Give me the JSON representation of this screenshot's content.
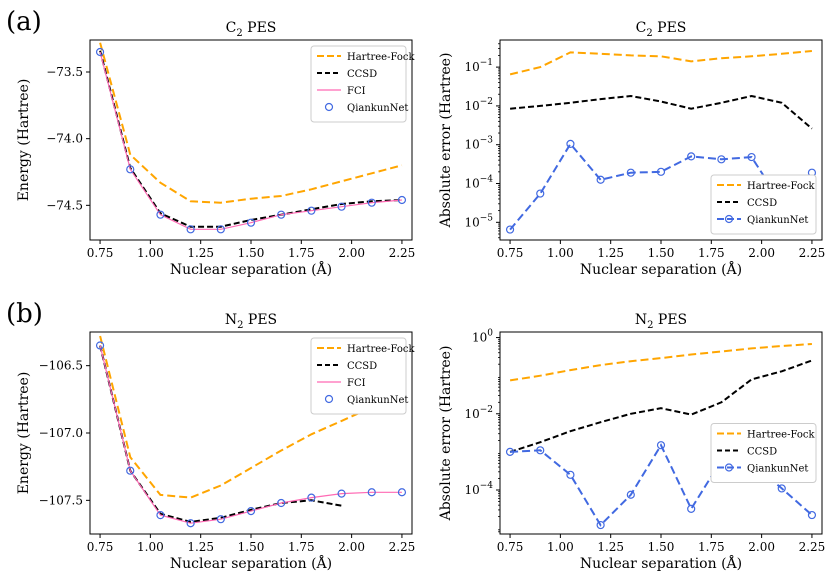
{
  "figure": {
    "panel_labels": [
      "(a)",
      "(b)"
    ]
  },
  "colors": {
    "hf": "#FFA500",
    "ccsd": "#000000",
    "fci": "#FF69B4",
    "qk": "#4169E1"
  },
  "chart_data": [
    {
      "id": "c2_energy",
      "type": "line",
      "title_main": "C",
      "title_sub": "2",
      "title_rest": " PES",
      "xlabel": "Nuclear separation (Å)",
      "ylabel": "Energy (Hartree)",
      "xlim": [
        0.7,
        2.3
      ],
      "ylim": [
        -74.76,
        -73.26
      ],
      "yscale": "linear",
      "xticks": [
        0.75,
        1.0,
        1.25,
        1.5,
        1.75,
        2.0,
        2.25
      ],
      "xtick_labels": [
        "0.75",
        "1.00",
        "1.25",
        "1.50",
        "1.75",
        "2.00",
        "2.25"
      ],
      "yticks": [
        -73.5,
        -74.0,
        -74.5
      ],
      "ytick_labels": [
        "−73.5",
        "−74.0",
        "−74.5"
      ],
      "legend_position": "top-right",
      "series": [
        {
          "name": "Hartree-Fock",
          "style": "dash",
          "color_key": "hf",
          "x": [
            0.75,
            0.9,
            1.05,
            1.2,
            1.35,
            1.5,
            1.65,
            1.8,
            1.95,
            2.1,
            2.25
          ],
          "y": [
            -73.28,
            -74.12,
            -74.33,
            -74.47,
            -74.48,
            -74.45,
            -74.43,
            -74.38,
            -74.32,
            -74.26,
            -74.2
          ]
        },
        {
          "name": "CCSD",
          "style": "dash",
          "color_key": "ccsd",
          "x": [
            0.75,
            0.9,
            1.05,
            1.2,
            1.35,
            1.5,
            1.65,
            1.8,
            1.95,
            2.1,
            2.25
          ],
          "y": [
            -73.34,
            -74.22,
            -74.56,
            -74.66,
            -74.66,
            -74.61,
            -74.57,
            -74.53,
            -74.49,
            -74.47,
            -74.46
          ]
        },
        {
          "name": "FCI",
          "style": "solid",
          "color_key": "fci",
          "x": [
            0.75,
            0.9,
            1.05,
            1.2,
            1.35,
            1.5,
            1.65,
            1.8,
            1.95,
            2.1,
            2.25
          ],
          "y": [
            -73.35,
            -74.23,
            -74.57,
            -74.68,
            -74.68,
            -74.63,
            -74.57,
            -74.54,
            -74.51,
            -74.48,
            -74.46
          ]
        },
        {
          "name": "QiankunNet",
          "style": "marker",
          "color_key": "qk",
          "x": [
            0.75,
            0.9,
            1.05,
            1.2,
            1.35,
            1.5,
            1.65,
            1.8,
            1.95,
            2.1,
            2.25
          ],
          "y": [
            -73.35,
            -74.23,
            -74.57,
            -74.68,
            -74.68,
            -74.63,
            -74.57,
            -74.54,
            -74.51,
            -74.48,
            -74.46
          ]
        }
      ]
    },
    {
      "id": "c2_error",
      "type": "line",
      "title_main": "C",
      "title_sub": "2",
      "title_rest": " PES",
      "xlabel": "Nuclear separation (Å)",
      "ylabel": "Absolute error (Hartree)",
      "xlim": [
        0.7,
        2.3
      ],
      "ylim": [
        3.5e-06,
        0.5
      ],
      "yscale": "log",
      "xticks": [
        0.75,
        1.0,
        1.25,
        1.5,
        1.75,
        2.0,
        2.25
      ],
      "xtick_labels": [
        "0.75",
        "1.00",
        "1.25",
        "1.50",
        "1.75",
        "2.00",
        "2.25"
      ],
      "yticks": [
        1e-05,
        0.0001,
        0.001,
        0.01,
        0.1
      ],
      "ytick_bases": [
        "10",
        "10",
        "10",
        "10",
        "10"
      ],
      "ytick_exps": [
        "−5",
        "−4",
        "−3",
        "−2",
        "−1"
      ],
      "legend_position": "lower-right",
      "series": [
        {
          "name": "Hartree-Fock",
          "style": "dash",
          "color_key": "hf",
          "x": [
            0.75,
            0.9,
            1.05,
            1.2,
            1.35,
            1.5,
            1.65,
            1.8,
            1.95,
            2.1,
            2.25
          ],
          "y": [
            0.065,
            0.1,
            0.24,
            0.22,
            0.2,
            0.19,
            0.14,
            0.17,
            0.19,
            0.22,
            0.26
          ]
        },
        {
          "name": "CCSD",
          "style": "dash",
          "color_key": "ccsd",
          "x": [
            0.75,
            0.9,
            1.05,
            1.2,
            1.35,
            1.5,
            1.65,
            1.8,
            1.95,
            2.1,
            2.25
          ],
          "y": [
            0.0085,
            0.01,
            0.012,
            0.015,
            0.018,
            0.013,
            0.0085,
            0.012,
            0.018,
            0.012,
            0.0026
          ]
        },
        {
          "name": "QiankunNet",
          "style": "dash-marker",
          "color_key": "qk",
          "x": [
            0.75,
            0.9,
            1.05,
            1.2,
            1.35,
            1.5,
            1.65,
            1.8,
            1.95,
            2.1,
            2.25
          ],
          "y": [
            6.5e-06,
            5.5e-05,
            0.00105,
            0.000125,
            0.00019,
            0.0002,
            0.0005,
            0.00042,
            0.00048,
            3e-05,
            0.00019
          ]
        }
      ]
    },
    {
      "id": "n2_energy",
      "type": "line",
      "title_main": "N",
      "title_sub": "2",
      "title_rest": " PES",
      "xlabel": "Nuclear separation (Å)",
      "ylabel": "Energy (Hartree)",
      "xlim": [
        0.7,
        2.3
      ],
      "ylim": [
        -107.75,
        -106.25
      ],
      "yscale": "linear",
      "xticks": [
        0.75,
        1.0,
        1.25,
        1.5,
        1.75,
        2.0,
        2.25
      ],
      "xtick_labels": [
        "0.75",
        "1.00",
        "1.25",
        "1.50",
        "1.75",
        "2.00",
        "2.25"
      ],
      "yticks": [
        -106.5,
        -107.0,
        -107.5
      ],
      "ytick_labels": [
        "−106.5",
        "−107.0",
        "−107.5"
      ],
      "legend_position": "top-right",
      "series": [
        {
          "name": "Hartree-Fock",
          "style": "dash",
          "color_key": "hf",
          "x": [
            0.75,
            0.9,
            1.05,
            1.2,
            1.35,
            1.5,
            1.65,
            1.8,
            1.95,
            2.1,
            2.25
          ],
          "y": [
            -106.28,
            -107.18,
            -107.46,
            -107.48,
            -107.39,
            -107.26,
            -107.13,
            -107.01,
            -106.91,
            -106.81,
            -106.72
          ]
        },
        {
          "name": "CCSD",
          "style": "dash",
          "color_key": "ccsd",
          "x": [
            0.75,
            0.9,
            1.05,
            1.2,
            1.35,
            1.5,
            1.65,
            1.8,
            1.95
          ],
          "y": [
            -106.35,
            -107.28,
            -107.6,
            -107.66,
            -107.63,
            -107.57,
            -107.52,
            -107.5,
            -107.54
          ]
        },
        {
          "name": "FCI",
          "style": "solid",
          "color_key": "fci",
          "x": [
            0.75,
            0.9,
            1.05,
            1.2,
            1.35,
            1.5,
            1.65,
            1.8,
            1.95,
            2.1,
            2.25
          ],
          "y": [
            -106.35,
            -107.28,
            -107.61,
            -107.67,
            -107.64,
            -107.58,
            -107.52,
            -107.48,
            -107.45,
            -107.44,
            -107.44
          ]
        },
        {
          "name": "QiankunNet",
          "style": "marker",
          "color_key": "qk",
          "x": [
            0.75,
            0.9,
            1.05,
            1.2,
            1.35,
            1.5,
            1.65,
            1.8,
            1.95,
            2.1,
            2.25
          ],
          "y": [
            -106.35,
            -107.28,
            -107.61,
            -107.67,
            -107.64,
            -107.58,
            -107.52,
            -107.48,
            -107.45,
            -107.44,
            -107.44
          ]
        }
      ]
    },
    {
      "id": "n2_error",
      "type": "line",
      "title_main": "N",
      "title_sub": "2",
      "title_rest": " PES",
      "xlabel": "Nuclear separation (Å)",
      "ylabel": "Absolute error (Hartree)",
      "xlim": [
        0.7,
        2.3
      ],
      "ylim": [
        7e-06,
        1.4
      ],
      "yscale": "log",
      "xticks": [
        0.75,
        1.0,
        1.25,
        1.5,
        1.75,
        2.0,
        2.25
      ],
      "xtick_labels": [
        "0.75",
        "1.00",
        "1.25",
        "1.50",
        "1.75",
        "2.00",
        "2.25"
      ],
      "yticks": [
        0.0001,
        0.01,
        1
      ],
      "ytick_bases": [
        "10",
        "10",
        "10"
      ],
      "ytick_exps": [
        "−4",
        "−2",
        "0"
      ],
      "legend_position": "center-right",
      "series": [
        {
          "name": "Hartree-Fock",
          "style": "dash",
          "color_key": "hf",
          "x": [
            0.75,
            0.9,
            1.05,
            1.2,
            1.35,
            1.5,
            1.65,
            1.8,
            1.95,
            2.1,
            2.25
          ],
          "y": [
            0.075,
            0.1,
            0.14,
            0.19,
            0.24,
            0.29,
            0.36,
            0.43,
            0.52,
            0.6,
            0.68
          ]
        },
        {
          "name": "CCSD",
          "style": "dash",
          "color_key": "ccsd",
          "x": [
            0.75,
            0.9,
            1.05,
            1.2,
            1.35,
            1.5,
            1.65,
            1.8,
            1.95,
            2.1,
            2.25
          ],
          "y": [
            0.001,
            0.0018,
            0.0035,
            0.006,
            0.01,
            0.014,
            0.0095,
            0.02,
            0.08,
            0.13,
            0.25
          ]
        },
        {
          "name": "QiankunNet",
          "style": "dash-marker",
          "color_key": "qk",
          "x": [
            0.75,
            0.9,
            1.05,
            1.2,
            1.35,
            1.5,
            1.65,
            1.8,
            1.95,
            2.1,
            2.25
          ],
          "y": [
            0.001,
            0.0011,
            0.00025,
            1.2e-05,
            7.5e-05,
            0.0015,
            3.2e-05,
            0.0006,
            0.0005,
            0.00011,
            2.2e-05
          ]
        }
      ]
    }
  ]
}
